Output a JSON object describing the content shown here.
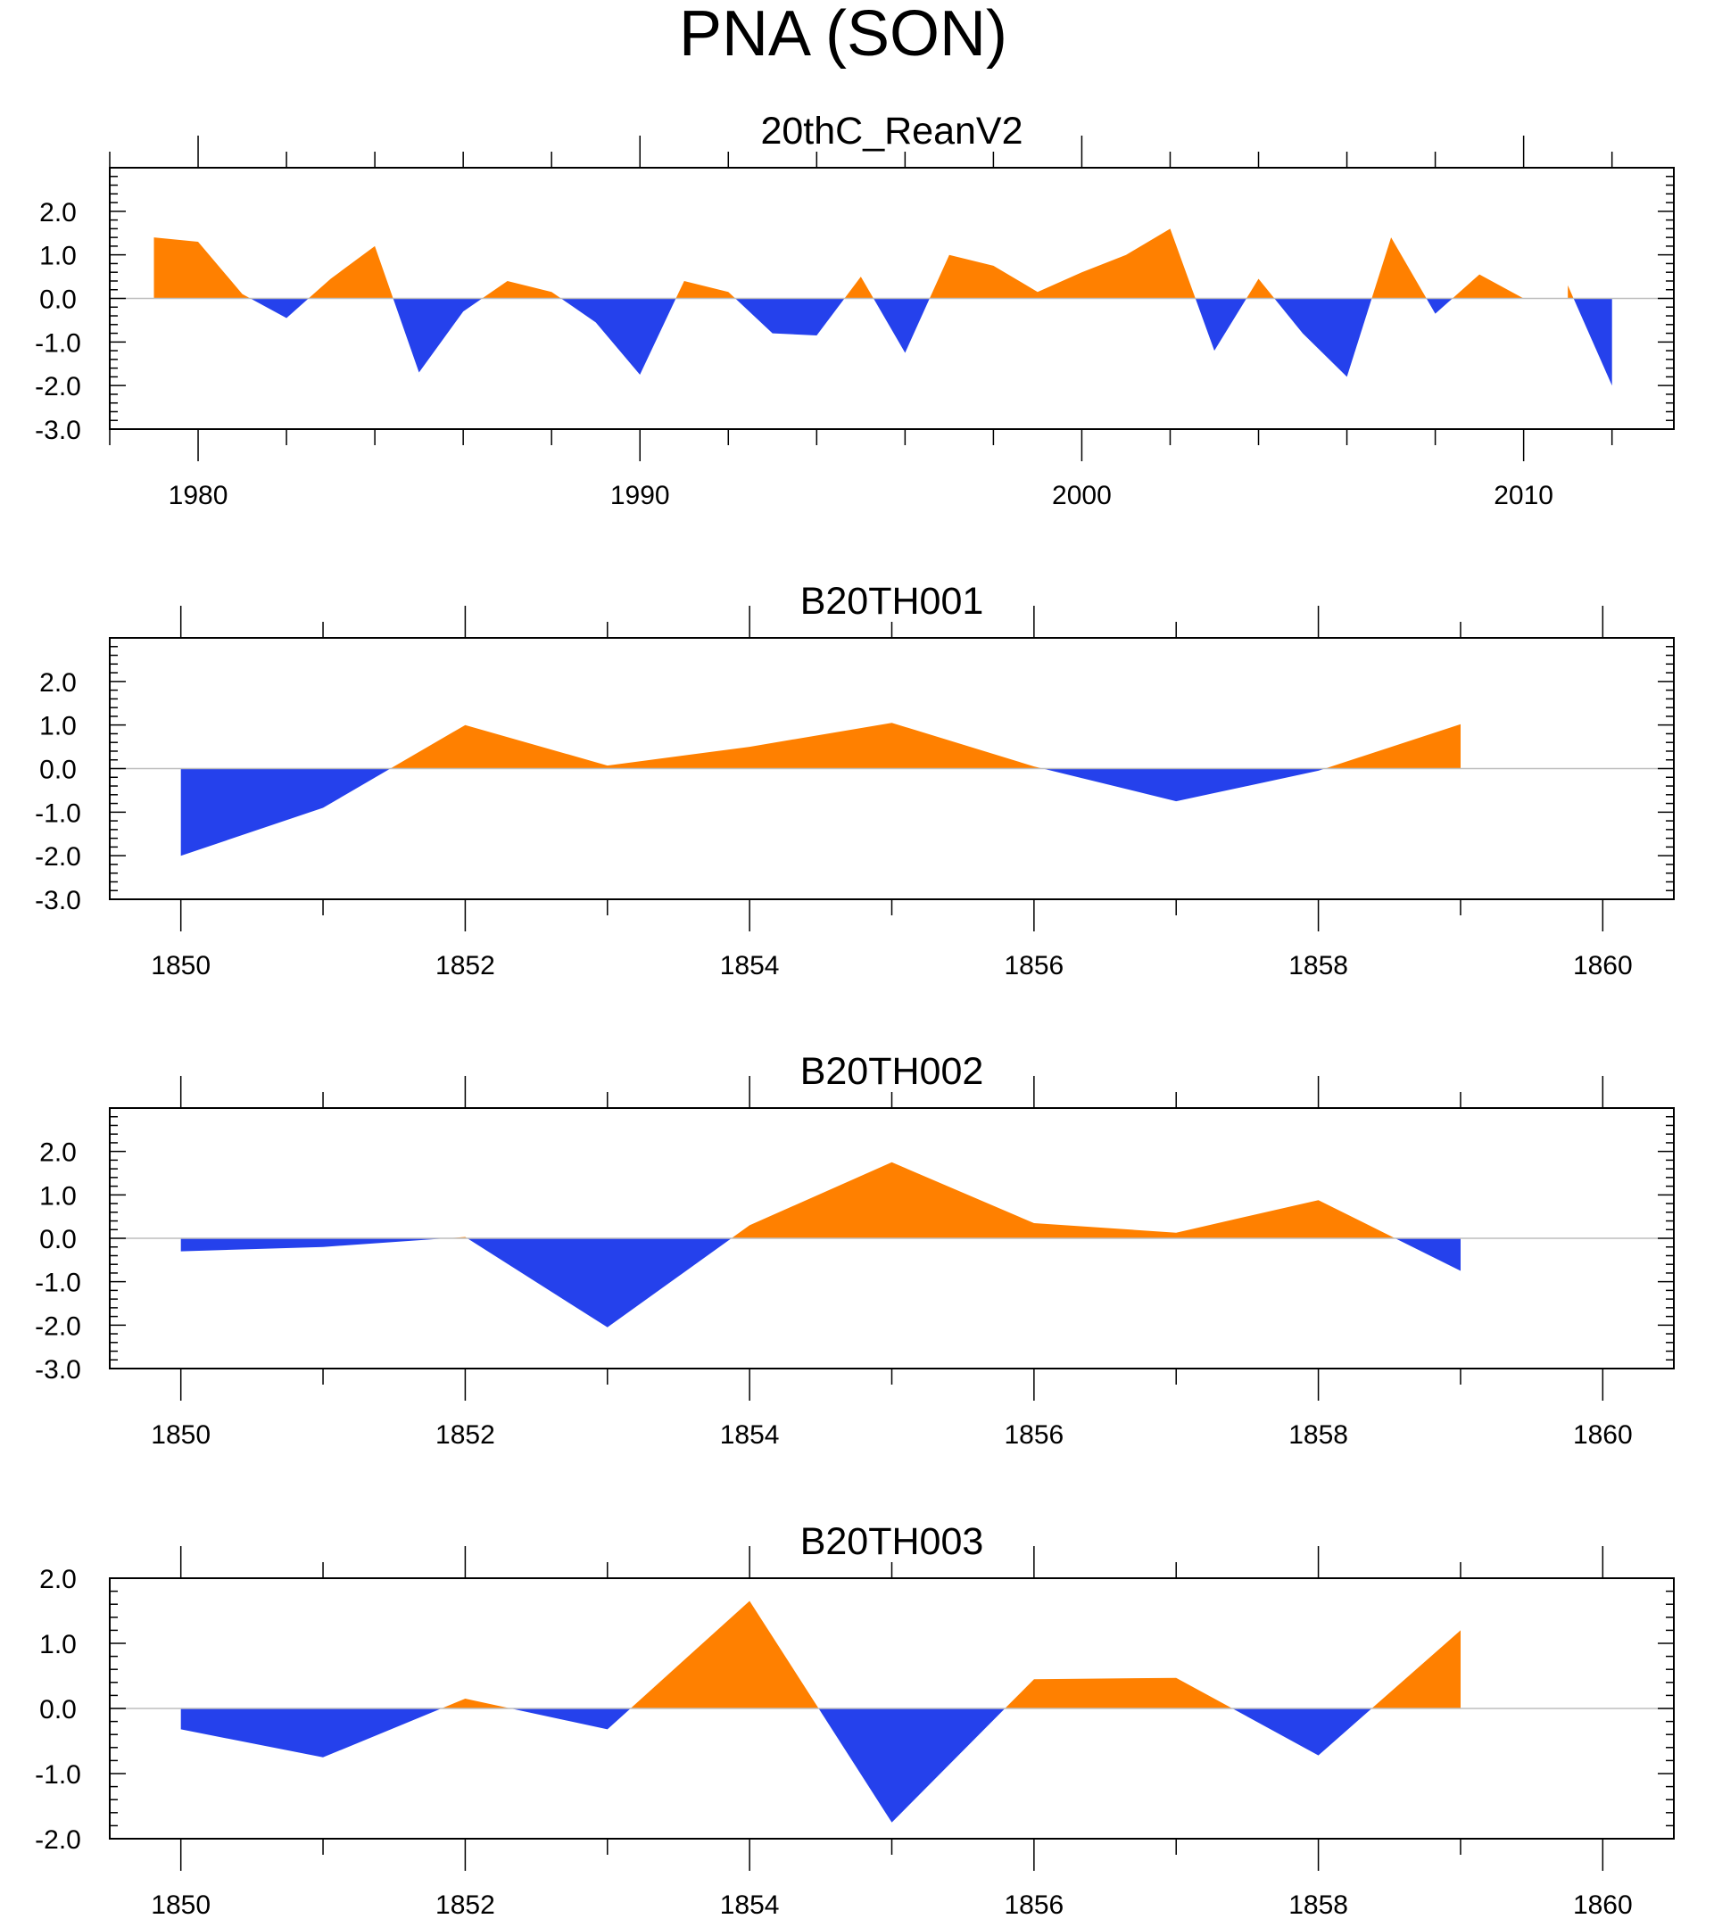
{
  "title": "PNA (SON)",
  "colors": {
    "positive": "#FF8000",
    "negative": "#2541EC",
    "zero_line": "#BEBEBE",
    "axis": "#000000"
  },
  "chart_data": [
    {
      "type": "area",
      "title": "20thC_ReanV2",
      "x": [
        1979,
        1980,
        1981,
        1982,
        1983,
        1984,
        1985,
        1986,
        1987,
        1988,
        1989,
        1990,
        1991,
        1992,
        1993,
        1994,
        1995,
        1996,
        1997,
        1998,
        1999,
        2000,
        2001,
        2002,
        2003,
        2004,
        2005,
        2006,
        2007,
        2008,
        2009,
        2010,
        2011,
        2012
      ],
      "values": [
        1.4,
        1.3,
        0.1,
        -0.45,
        0.45,
        1.2,
        -1.7,
        -0.3,
        0.4,
        0.15,
        -0.55,
        -1.75,
        0.4,
        0.15,
        -0.8,
        -0.85,
        0.5,
        -1.25,
        1.0,
        0.75,
        0.15,
        0.6,
        1.0,
        1.6,
        -1.2,
        0.45,
        -0.8,
        -1.8,
        1.4,
        -0.35,
        0.55,
        0.0,
        0.3,
        -2.0
      ],
      "xlim": [
        1978,
        2013.4
      ],
      "ylim": [
        -3.0,
        3.0
      ],
      "xticks": [
        1980,
        1990,
        2000,
        2010
      ],
      "xtick_labels": [
        "1980",
        "1990",
        "2000",
        "2010"
      ],
      "yticks": [
        2.0,
        1.0,
        0.0,
        -1.0,
        -2.0,
        -3.0
      ],
      "ytick_labels": [
        "2.0",
        "1.0",
        "0.0",
        "-1.0",
        "-2.0",
        "-3.0"
      ]
    },
    {
      "type": "area",
      "title": "B20TH001",
      "x": [
        1850,
        1851,
        1852,
        1853,
        1854,
        1855,
        1856,
        1857,
        1858,
        1859
      ],
      "values": [
        -2.0,
        -0.9,
        1.0,
        0.07,
        0.5,
        1.05,
        0.05,
        -0.75,
        -0.05,
        1.02
      ],
      "xlim": [
        1849.5,
        1860.5
      ],
      "ylim": [
        -3.0,
        3.0
      ],
      "xticks": [
        1850,
        1852,
        1854,
        1856,
        1858,
        1860
      ],
      "xtick_labels": [
        "1850",
        "1852",
        "1854",
        "1856",
        "1858",
        "1860"
      ],
      "yticks": [
        2.0,
        1.0,
        0.0,
        -1.0,
        -2.0,
        -3.0
      ],
      "ytick_labels": [
        "2.0",
        "1.0",
        "0.0",
        "-1.0",
        "-2.0",
        "-3.0"
      ]
    },
    {
      "type": "area",
      "title": "B20TH002",
      "x": [
        1850,
        1851,
        1852,
        1853,
        1854,
        1855,
        1856,
        1857,
        1858,
        1859
      ],
      "values": [
        -0.3,
        -0.2,
        0.03,
        -2.05,
        0.3,
        1.75,
        0.35,
        0.13,
        0.88,
        -0.75
      ],
      "xlim": [
        1849.5,
        1860.5
      ],
      "ylim": [
        -3.0,
        3.0
      ],
      "xticks": [
        1850,
        1852,
        1854,
        1856,
        1858,
        1860
      ],
      "xtick_labels": [
        "1850",
        "1852",
        "1854",
        "1856",
        "1858",
        "1860"
      ],
      "yticks": [
        2.0,
        1.0,
        0.0,
        -1.0,
        -2.0,
        -3.0
      ],
      "ytick_labels": [
        "2.0",
        "1.0",
        "0.0",
        "-1.0",
        "-2.0",
        "-3.0"
      ]
    },
    {
      "type": "area",
      "title": "B20TH003",
      "x": [
        1850,
        1851,
        1852,
        1853,
        1854,
        1855,
        1856,
        1857,
        1858,
        1859
      ],
      "values": [
        -0.32,
        -0.75,
        0.15,
        -0.32,
        1.65,
        -1.75,
        0.45,
        0.47,
        -0.72,
        1.2
      ],
      "xlim": [
        1849.5,
        1860.5
      ],
      "ylim": [
        -2.0,
        2.0
      ],
      "xticks": [
        1850,
        1852,
        1854,
        1856,
        1858,
        1860
      ],
      "xtick_labels": [
        "1850",
        "1852",
        "1854",
        "1856",
        "1858",
        "1860"
      ],
      "yticks": [
        2.0,
        1.0,
        0.0,
        -1.0,
        -2.0
      ],
      "ytick_labels": [
        "2.0",
        "1.0",
        "0.0",
        "-1.0",
        "-2.0"
      ]
    }
  ]
}
